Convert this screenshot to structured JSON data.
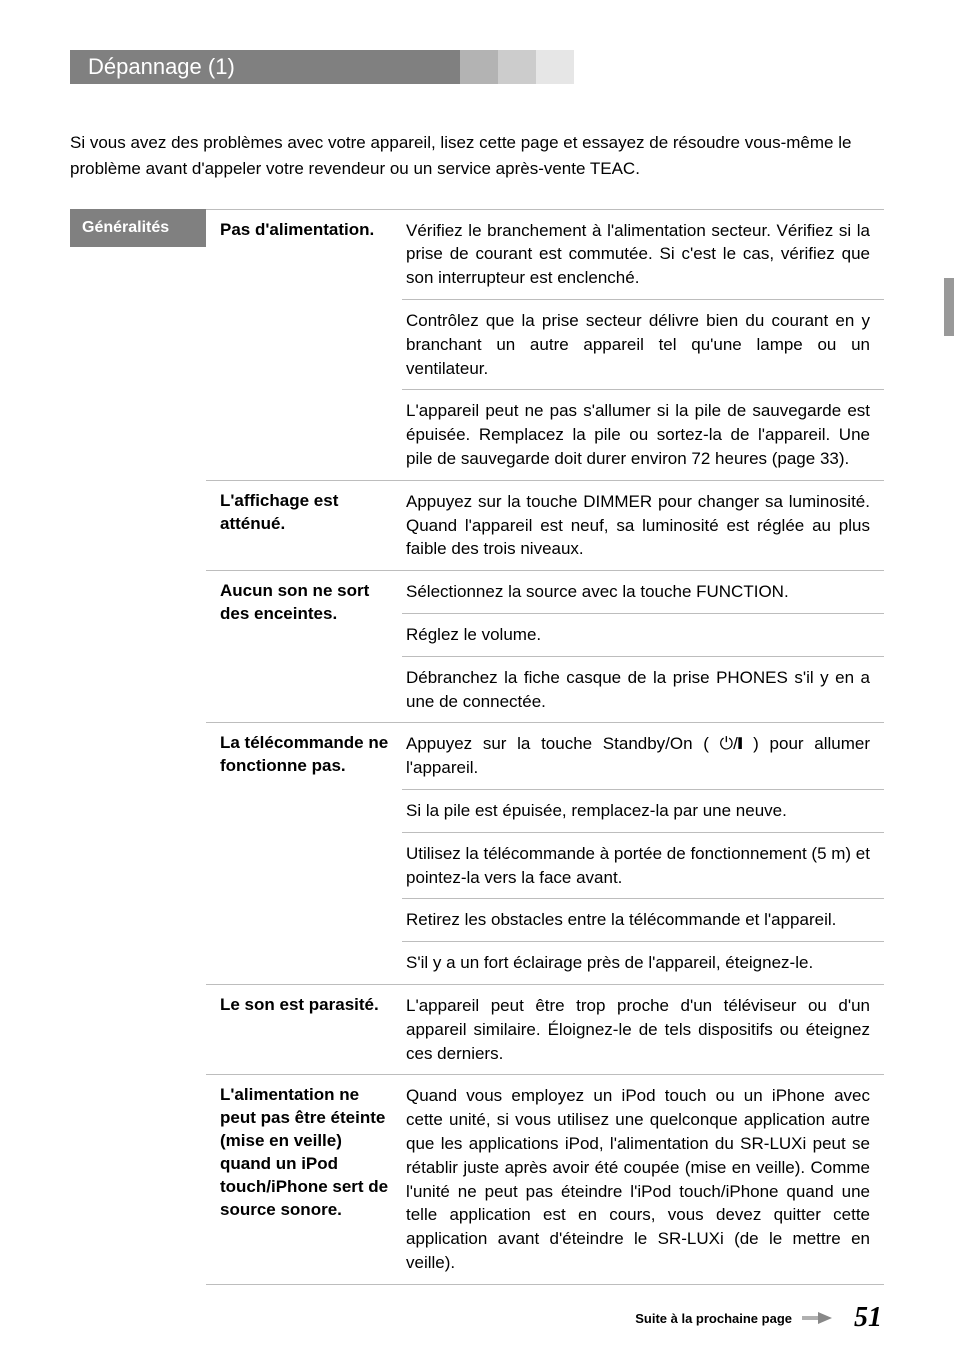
{
  "header": {
    "title": "Dépannage (1)"
  },
  "intro": "Si vous avez des problèmes avec votre appareil, lisez cette page et essayez de résoudre vous-même le problème avant d'appeler votre revendeur ou un service après-vente TEAC.",
  "category_label": "Généralités",
  "rows": [
    {
      "issue": "Pas d'alimentation.",
      "solutions": [
        "Vérifiez le branchement à l'alimentation secteur. Vérifiez si la prise de courant est commutée. Si c'est le cas, vérifiez que son interrupteur est enclenché.",
        "Contrôlez que la prise secteur délivre bien du courant en y branchant un autre appareil tel qu'une lampe ou un ventilateur.",
        "L'appareil peut ne pas s'allumer si la pile de sauvegarde est épuisée. Remplacez la pile ou sortez-la de l'appareil. Une pile de sauvegarde doit durer environ 72 heures (page 33)."
      ]
    },
    {
      "issue": "L'affichage est atténué.",
      "solutions": [
        "Appuyez sur la touche DIMMER pour changer sa luminosité. Quand l'appareil est neuf, sa luminosité est réglée au plus faible des trois niveaux."
      ]
    },
    {
      "issue": "Aucun son ne sort des enceintes.",
      "solutions": [
        "Sélectionnez la source avec la touche FUNCTION.",
        "Réglez le volume.",
        "Débranchez la fiche casque de la prise PHONES s'il y en a une de connectée."
      ]
    },
    {
      "issue": "La télécommande ne fonctionne pas.",
      "solutions": [
        "Appuyez sur la touche Standby/On ( ⏻/❙ ) pour allumer l'appareil.",
        "Si la pile est épuisée, remplacez-la par une neuve.",
        "Utilisez la télécommande à portée de fonctionnement (5 m) et pointez-la vers la face avant.",
        "Retirez les obstacles entre la télécommande et l'appareil.",
        "S'il y a un fort éclairage près de l'appareil, éteignez-le."
      ]
    },
    {
      "issue": "Le son est parasité.",
      "solutions": [
        "L'appareil peut être trop proche d'un téléviseur ou d'un appareil similaire. Éloignez-le de tels dispositifs ou éteignez ces derniers."
      ]
    },
    {
      "issue": "L'alimentation ne peut pas être éteinte (mise en veille) quand un iPod touch/iPhone sert de source sonore.",
      "solutions": [
        "Quand vous employez un iPod touch ou un iPhone avec cette unité, si vous utilisez une quelconque application autre que les applications iPod, l'alimentation du SR-LUXi peut se rétablir juste après avoir été coupée (mise en veille). Comme l'unité ne peut pas éteindre l'iPod touch/iPhone quand une telle application est en cours, vous devez quitter cette application avant d'éteindre le SR-LUXi (de le mettre en veille)."
      ]
    }
  ],
  "footer": {
    "text": "Suite à la prochaine page",
    "page_number": "51"
  }
}
